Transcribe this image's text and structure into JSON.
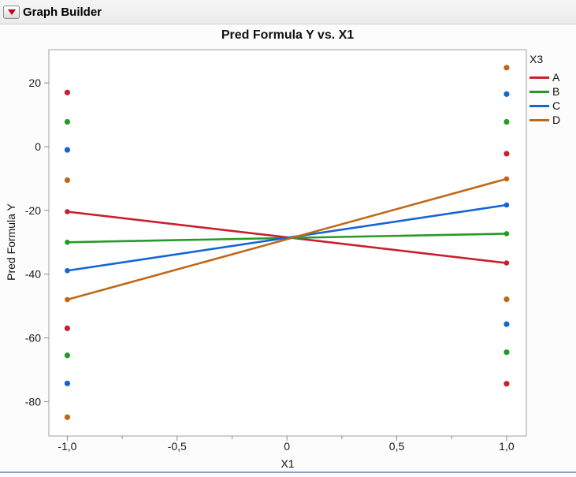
{
  "header": {
    "title": "Graph Builder",
    "disclosure_icon_color": "#c00511"
  },
  "chart_data": {
    "type": "scatter",
    "title": "Pred Formula Y vs. X1",
    "xlabel": "X1",
    "ylabel": "Pred Formula Y",
    "xlim": [
      -1.084,
      1.09
    ],
    "ylim": [
      -90.8,
      30.45
    ],
    "grid": false,
    "x_major_ticks": [
      {
        "v": -1.0,
        "label": "-1,0"
      },
      {
        "v": -0.5,
        "label": "-0,5"
      },
      {
        "v": 0,
        "label": "0"
      },
      {
        "v": 0.5,
        "label": "0,5"
      },
      {
        "v": 1.0,
        "label": "1,0"
      }
    ],
    "x_minor_ticks": [
      -0.75,
      -0.25,
      0.25,
      0.75
    ],
    "y_major_ticks": [
      {
        "v": 20,
        "label": "20"
      },
      {
        "v": 0,
        "label": "0"
      },
      {
        "v": -20,
        "label": "-20"
      },
      {
        "v": -40,
        "label": "-40"
      },
      {
        "v": -60,
        "label": "-60"
      },
      {
        "v": -80,
        "label": "-80"
      }
    ],
    "legend": {
      "title": "X3",
      "position": "right",
      "entries": [
        {
          "label": "A",
          "color": "#c8202f"
        },
        {
          "label": "B",
          "color": "#259a27"
        },
        {
          "label": "C",
          "color": "#1565d3"
        },
        {
          "label": "D",
          "color": "#c06818"
        }
      ]
    },
    "series": [
      {
        "name": "A",
        "color": "#c8202f",
        "points": [
          [
            -1,
            17
          ],
          [
            -1,
            -57
          ],
          [
            1,
            -2.2
          ],
          [
            1,
            -74.4
          ]
        ],
        "line": [
          [
            -1,
            -20.4
          ],
          [
            1,
            -36.5
          ]
        ]
      },
      {
        "name": "B",
        "color": "#259a27",
        "points": [
          [
            -1,
            7.8
          ],
          [
            -1,
            -65.5
          ],
          [
            1,
            7.8
          ],
          [
            1,
            -64.5
          ]
        ],
        "line": [
          [
            -1,
            -30
          ],
          [
            1,
            -27.3
          ]
        ]
      },
      {
        "name": "C",
        "color": "#1565d3",
        "points": [
          [
            -1,
            -1
          ],
          [
            -1,
            -74.3
          ],
          [
            1,
            16.5
          ],
          [
            1,
            -55.7
          ]
        ],
        "line": [
          [
            -1,
            -38.9
          ],
          [
            1,
            -18.3
          ]
        ]
      },
      {
        "name": "D",
        "color": "#c06818",
        "points": [
          [
            -1,
            -10.5
          ],
          [
            -1,
            -84.9
          ],
          [
            1,
            24.8
          ],
          [
            1,
            -47.9
          ]
        ],
        "line": [
          [
            -1,
            -48
          ],
          [
            1,
            -10.1
          ]
        ]
      }
    ],
    "style": {
      "frame_color": "#a0a0a0",
      "tick_color": "#8c8c8c",
      "label_color": "#1a1a1a",
      "plot_bg": "#ffffff",
      "line_width": 2.6,
      "point_radius": 3.6,
      "endpoint_radius": 3.3
    }
  }
}
